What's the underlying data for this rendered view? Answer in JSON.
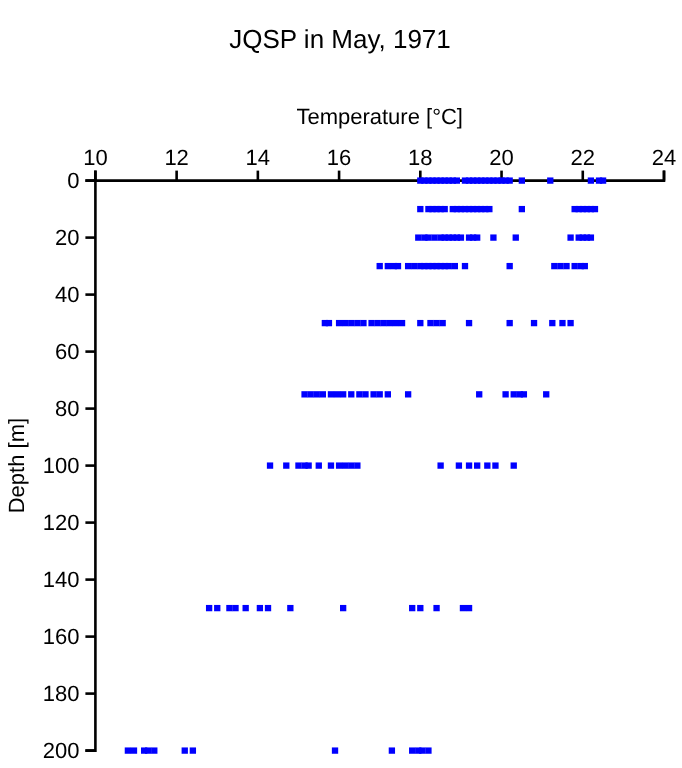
{
  "chart_data": {
    "type": "scatter",
    "title": "JQSP in May, 1971",
    "xlabel": "Temperature [°C]",
    "ylabel": "Depth [m]",
    "xlim": [
      10,
      24
    ],
    "xticks": [
      10,
      12,
      14,
      16,
      18,
      20,
      22,
      24
    ],
    "ylim": [
      200,
      0
    ],
    "yticks": [
      0,
      20,
      40,
      60,
      80,
      100,
      120,
      140,
      160,
      180,
      200
    ],
    "marker": "square",
    "series": [
      {
        "color": "#0000ff",
        "x": [
          18.0,
          18.1,
          18.2,
          18.3,
          18.4,
          18.5,
          18.6,
          18.7,
          18.8,
          18.9,
          19.1,
          19.2,
          19.3,
          19.4,
          19.5,
          19.6,
          19.7,
          19.8,
          19.9,
          20.0,
          20.1,
          20.2,
          20.5,
          21.2,
          22.2,
          22.4,
          22.5,
          18.0,
          18.2,
          18.3,
          18.4,
          18.5,
          18.6,
          18.8,
          18.9,
          19.0,
          19.1,
          19.2,
          19.3,
          19.4,
          19.5,
          19.6,
          19.7,
          20.5,
          21.8,
          21.9,
          22.0,
          22.1,
          22.2,
          22.3,
          17.95,
          18.1,
          18.2,
          18.35,
          18.5,
          18.6,
          18.7,
          18.8,
          18.9,
          19.0,
          19.2,
          19.3,
          19.4,
          19.8,
          20.35,
          21.7,
          21.9,
          22.0,
          22.1,
          22.2,
          17.0,
          17.2,
          17.35,
          17.45,
          17.7,
          17.85,
          18.0,
          18.1,
          18.2,
          18.3,
          18.4,
          18.5,
          18.6,
          18.7,
          18.85,
          19.1,
          20.2,
          21.3,
          21.45,
          21.6,
          21.8,
          21.95,
          22.05,
          15.65,
          15.75,
          16.0,
          16.15,
          16.3,
          16.45,
          16.6,
          16.8,
          16.95,
          17.1,
          17.25,
          17.4,
          17.55,
          18.0,
          18.25,
          18.4,
          18.55,
          19.2,
          20.2,
          20.8,
          21.25,
          21.5,
          21.7,
          15.15,
          15.3,
          15.45,
          15.6,
          15.8,
          15.95,
          16.1,
          16.3,
          16.5,
          16.65,
          16.85,
          17.0,
          17.2,
          17.7,
          19.45,
          20.1,
          20.3,
          20.45,
          20.55,
          21.1,
          14.3,
          14.7,
          15.0,
          15.15,
          15.25,
          15.5,
          15.8,
          16.0,
          16.15,
          16.3,
          16.45,
          18.5,
          18.95,
          19.2,
          19.4,
          19.65,
          19.85,
          20.3,
          12.8,
          13.0,
          13.3,
          13.45,
          13.7,
          14.05,
          14.25,
          14.8,
          16.1,
          17.8,
          18.0,
          18.4,
          19.05,
          19.2,
          10.8,
          10.95,
          11.2,
          11.3,
          11.45,
          12.2,
          12.4,
          15.9,
          17.3,
          17.8,
          17.95,
          18.05,
          18.2
        ],
        "values": [
          0,
          0,
          0,
          0,
          0,
          0,
          0,
          0,
          0,
          0,
          0,
          0,
          0,
          0,
          0,
          0,
          0,
          0,
          0,
          0,
          0,
          0,
          0,
          0,
          0,
          0,
          0,
          10,
          10,
          10,
          10,
          10,
          10,
          10,
          10,
          10,
          10,
          10,
          10,
          10,
          10,
          10,
          10,
          10,
          10,
          10,
          10,
          10,
          10,
          10,
          20,
          20,
          20,
          20,
          20,
          20,
          20,
          20,
          20,
          20,
          20,
          20,
          20,
          20,
          20,
          20,
          20,
          20,
          20,
          20,
          30,
          30,
          30,
          30,
          30,
          30,
          30,
          30,
          30,
          30,
          30,
          30,
          30,
          30,
          30,
          30,
          30,
          30,
          30,
          30,
          30,
          30,
          30,
          50,
          50,
          50,
          50,
          50,
          50,
          50,
          50,
          50,
          50,
          50,
          50,
          50,
          50,
          50,
          50,
          50,
          50,
          50,
          50,
          50,
          50,
          50,
          75,
          75,
          75,
          75,
          75,
          75,
          75,
          75,
          75,
          75,
          75,
          75,
          75,
          75,
          75,
          75,
          75,
          75,
          75,
          75,
          100,
          100,
          100,
          100,
          100,
          100,
          100,
          100,
          100,
          100,
          100,
          100,
          100,
          100,
          100,
          100,
          100,
          100,
          150,
          150,
          150,
          150,
          150,
          150,
          150,
          150,
          150,
          150,
          150,
          150,
          150,
          150,
          200,
          200,
          200,
          200,
          200,
          200,
          200,
          200,
          200,
          200,
          200,
          200,
          200
        ]
      }
    ]
  }
}
